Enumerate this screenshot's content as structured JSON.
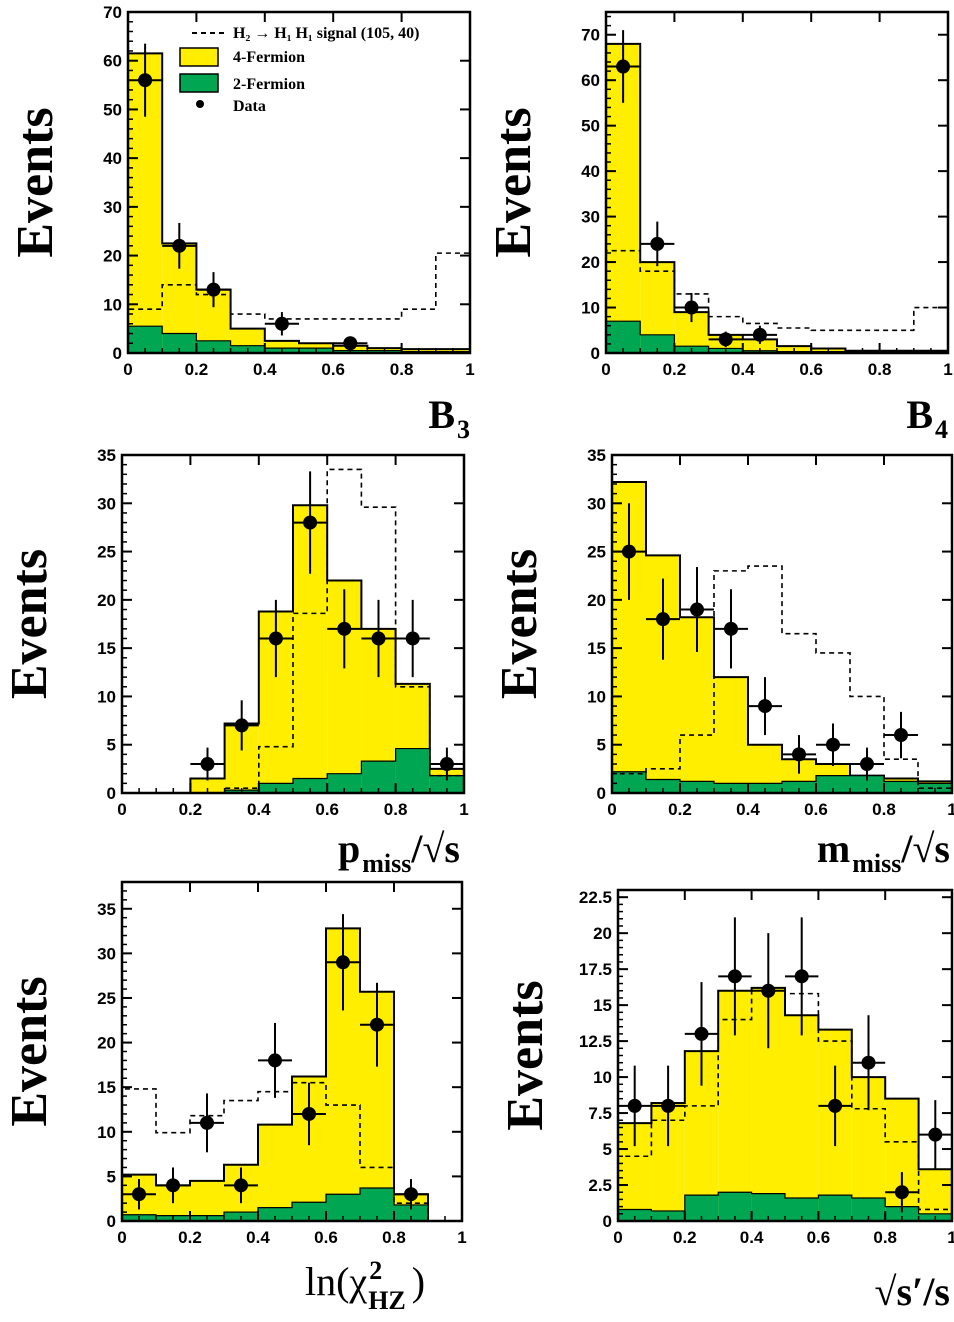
{
  "colors": {
    "four_fermion": "#ffee00",
    "two_fermion": "#00a651",
    "data": "#000000",
    "signal_line": "#000000"
  },
  "legend": {
    "signal": "H₂ → H₁ H₁ signal (105, 40)",
    "four_fermion": "4-Fermion",
    "two_fermion": "2-Fermion",
    "data": "Data"
  },
  "x_ticks": [
    "0",
    "0.2",
    "0.4",
    "0.6",
    "0.8",
    "1"
  ],
  "chart_data": [
    {
      "id": "b3",
      "type": "bar",
      "ylabel": "Events",
      "xlabel": "B",
      "xlabel_sub": "3",
      "xlim": [
        0,
        1
      ],
      "ylim": [
        0,
        70
      ],
      "yticks": [
        "0",
        "10",
        "20",
        "30",
        "40",
        "50",
        "60",
        "70"
      ],
      "bin_edges": [
        0,
        0.1,
        0.2,
        0.3,
        0.4,
        0.5,
        0.6,
        0.7,
        0.8,
        0.9,
        1.0
      ],
      "four_fermion": [
        61.5,
        22.5,
        13,
        5,
        2.5,
        2,
        1.5,
        1,
        0.8,
        0.8
      ],
      "two_fermion": [
        5.5,
        4,
        2.5,
        1.5,
        1,
        1,
        0.5,
        0.5,
        0.3,
        0.3
      ],
      "signal": [
        9,
        14,
        12,
        8,
        7,
        7,
        7,
        7,
        9,
        20.5
      ],
      "data": [
        {
          "x": 0.05,
          "y": 56,
          "err": 7.5
        },
        {
          "x": 0.15,
          "y": 22,
          "err": 4.7
        },
        {
          "x": 0.25,
          "y": 13,
          "err": 3.6
        },
        {
          "x": 0.45,
          "y": 6,
          "err": 2.4
        },
        {
          "x": 0.65,
          "y": 2,
          "err": 1.4
        }
      ]
    },
    {
      "id": "b4",
      "type": "bar",
      "ylabel": "Events",
      "xlabel": "B",
      "xlabel_sub": "4",
      "xlim": [
        0,
        1
      ],
      "ylim": [
        0,
        75
      ],
      "yticks": [
        "0",
        "10",
        "20",
        "30",
        "40",
        "50",
        "60",
        "70"
      ],
      "bin_edges": [
        0,
        0.1,
        0.2,
        0.3,
        0.4,
        0.5,
        0.6,
        0.7,
        0.8,
        0.9,
        1.0
      ],
      "four_fermion": [
        68,
        20,
        9,
        4,
        3,
        1.5,
        1,
        0.5,
        0.5,
        0.5
      ],
      "two_fermion": [
        7,
        4,
        1.5,
        1,
        0.5,
        0.3,
        0.3,
        0.3,
        0.2,
        0.2
      ],
      "signal": [
        22.5,
        18,
        13,
        8,
        6.5,
        5.5,
        5,
        5,
        5,
        10
      ],
      "data": [
        {
          "x": 0.05,
          "y": 63,
          "err": 8
        },
        {
          "x": 0.15,
          "y": 24,
          "err": 4.9
        },
        {
          "x": 0.25,
          "y": 10,
          "err": 3.2
        },
        {
          "x": 0.35,
          "y": 3,
          "err": 1.7
        },
        {
          "x": 0.45,
          "y": 4,
          "err": 2
        }
      ]
    },
    {
      "id": "pmiss",
      "type": "bar",
      "ylabel": "Events",
      "xlabel": "p",
      "xlabel_sub": "miss",
      "xlabel_tail": "/√s",
      "xlim": [
        0,
        1
      ],
      "ylim": [
        0,
        35
      ],
      "yticks": [
        "0",
        "5",
        "10",
        "15",
        "20",
        "25",
        "30",
        "35"
      ],
      "bin_edges": [
        0,
        0.1,
        0.2,
        0.3,
        0.4,
        0.5,
        0.6,
        0.7,
        0.8,
        0.9,
        1.0
      ],
      "four_fermion": [
        0,
        0,
        1.5,
        7.2,
        18.8,
        29.8,
        22,
        17,
        11.3,
        2.5
      ],
      "two_fermion": [
        0,
        0,
        0,
        0.3,
        1,
        1.5,
        2,
        3.3,
        4.6,
        1.8
      ],
      "signal": [
        0,
        0,
        0,
        0.5,
        4.8,
        18.6,
        33.5,
        29.6,
        11,
        1.8
      ],
      "data": [
        {
          "x": 0.25,
          "y": 3,
          "err": 1.7
        },
        {
          "x": 0.35,
          "y": 7,
          "err": 2.6
        },
        {
          "x": 0.45,
          "y": 16,
          "err": 4
        },
        {
          "x": 0.55,
          "y": 28,
          "err": 5.3
        },
        {
          "x": 0.65,
          "y": 17,
          "err": 4.1
        },
        {
          "x": 0.75,
          "y": 16,
          "err": 4
        },
        {
          "x": 0.85,
          "y": 16,
          "err": 4
        },
        {
          "x": 0.95,
          "y": 3,
          "err": 1.7
        }
      ]
    },
    {
      "id": "mmiss",
      "type": "bar",
      "ylabel": "Events",
      "xlabel": "m",
      "xlabel_sub": "miss",
      "xlabel_tail": "/√s",
      "xlim": [
        0,
        1
      ],
      "ylim": [
        0,
        35
      ],
      "yticks": [
        "0",
        "5",
        "10",
        "15",
        "20",
        "25",
        "30",
        "35"
      ],
      "bin_edges": [
        0,
        0.1,
        0.2,
        0.3,
        0.4,
        0.5,
        0.6,
        0.7,
        0.8,
        0.9,
        1.0
      ],
      "four_fermion": [
        32.2,
        24.6,
        18.2,
        12,
        5,
        3.5,
        3,
        1.8,
        1.5,
        1.2
      ],
      "two_fermion": [
        2.2,
        1.4,
        1.2,
        1,
        1,
        1.2,
        1.8,
        1.8,
        1.2,
        1
      ],
      "signal": [
        2,
        2.5,
        6,
        23,
        23.5,
        16.5,
        14.5,
        10,
        3.5,
        0.5
      ],
      "data": [
        {
          "x": 0.05,
          "y": 25,
          "err": 5
        },
        {
          "x": 0.15,
          "y": 18,
          "err": 4.2
        },
        {
          "x": 0.25,
          "y": 19,
          "err": 4.4
        },
        {
          "x": 0.35,
          "y": 17,
          "err": 4.1
        },
        {
          "x": 0.45,
          "y": 9,
          "err": 3
        },
        {
          "x": 0.55,
          "y": 4,
          "err": 2
        },
        {
          "x": 0.65,
          "y": 5,
          "err": 2.2
        },
        {
          "x": 0.75,
          "y": 3,
          "err": 1.7
        },
        {
          "x": 0.85,
          "y": 6,
          "err": 2.4
        }
      ]
    },
    {
      "id": "chi2",
      "type": "bar",
      "ylabel": "Events",
      "xlabel": "ln(χ",
      "xlabel_sup": "2",
      "xlabel_sub": "HZ",
      "xlabel_tail": ")",
      "xlim": [
        0,
        1
      ],
      "ylim": [
        0,
        38
      ],
      "yticks": [
        "0",
        "5",
        "10",
        "15",
        "20",
        "25",
        "30",
        "35"
      ],
      "bin_edges": [
        0,
        0.1,
        0.2,
        0.3,
        0.4,
        0.5,
        0.6,
        0.7,
        0.8,
        0.9,
        1.0
      ],
      "four_fermion": [
        5.2,
        4,
        4.5,
        6.3,
        10.8,
        16.2,
        32.8,
        25.7,
        3,
        0
      ],
      "two_fermion": [
        0.7,
        0.6,
        0.6,
        1,
        1.5,
        2.1,
        3,
        3.7,
        1.8,
        0
      ],
      "signal": [
        14.8,
        9.9,
        11.8,
        13.5,
        14.5,
        15.5,
        13,
        6,
        2,
        0
      ],
      "data": [
        {
          "x": 0.05,
          "y": 3,
          "err": 1.7
        },
        {
          "x": 0.15,
          "y": 4,
          "err": 2
        },
        {
          "x": 0.25,
          "y": 11,
          "err": 3.3
        },
        {
          "x": 0.35,
          "y": 4,
          "err": 2
        },
        {
          "x": 0.45,
          "y": 18,
          "err": 4.2
        },
        {
          "x": 0.55,
          "y": 12,
          "err": 3.5
        },
        {
          "x": 0.65,
          "y": 29,
          "err": 5.4
        },
        {
          "x": 0.75,
          "y": 22,
          "err": 4.7
        },
        {
          "x": 0.85,
          "y": 3,
          "err": 1.7
        }
      ]
    },
    {
      "id": "sprime",
      "type": "bar",
      "ylabel": "Events",
      "xlabel": "√s′/s",
      "xlim": [
        0,
        1
      ],
      "ylim": [
        0,
        23
      ],
      "yticks": [
        "0",
        "2.5",
        "5",
        "7.5",
        "10",
        "12.5",
        "15",
        "17.5",
        "20",
        "22.5"
      ],
      "bin_edges": [
        0,
        0.1,
        0.2,
        0.3,
        0.4,
        0.5,
        0.6,
        0.7,
        0.8,
        0.9,
        1.0
      ],
      "four_fermion": [
        6.8,
        8.2,
        11.8,
        16,
        16.2,
        14.3,
        13.3,
        10,
        8.5,
        3.6
      ],
      "two_fermion": [
        0.8,
        0.7,
        1.8,
        2,
        1.9,
        1.6,
        1.8,
        1.6,
        1,
        0.5
      ],
      "signal": [
        4.5,
        7,
        8,
        14,
        16,
        15.8,
        12.5,
        7.8,
        5.5,
        0.8
      ],
      "data": [
        {
          "x": 0.05,
          "y": 8,
          "err": 2.8
        },
        {
          "x": 0.15,
          "y": 8,
          "err": 2.8
        },
        {
          "x": 0.25,
          "y": 13,
          "err": 3.6
        },
        {
          "x": 0.35,
          "y": 17,
          "err": 4.1
        },
        {
          "x": 0.45,
          "y": 16,
          "err": 4
        },
        {
          "x": 0.55,
          "y": 17,
          "err": 4.1
        },
        {
          "x": 0.65,
          "y": 8,
          "err": 2.8
        },
        {
          "x": 0.75,
          "y": 11,
          "err": 3.3
        },
        {
          "x": 0.85,
          "y": 2,
          "err": 1.4
        },
        {
          "x": 0.95,
          "y": 6,
          "err": 2.4
        }
      ]
    }
  ]
}
